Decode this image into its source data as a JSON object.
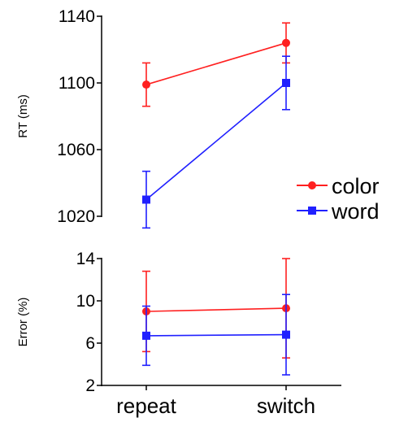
{
  "legend": [
    {
      "name": "color",
      "color": "#ff2020",
      "marker": "circle"
    },
    {
      "name": "word",
      "color": "#2020ff",
      "marker": "square"
    }
  ],
  "chart_data": [
    {
      "type": "line",
      "ylabel": "RT (ms)",
      "categories": [
        "repeat",
        "switch"
      ],
      "ylim": [
        1020,
        1140
      ],
      "yticks": [
        1020,
        1060,
        1100,
        1140
      ],
      "series": [
        {
          "name": "color",
          "color": "#ff2020",
          "marker": "circle",
          "values": [
            1099,
            1124
          ],
          "err": [
            13,
            12
          ]
        },
        {
          "name": "word",
          "color": "#2020ff",
          "marker": "square",
          "values": [
            1030,
            1100
          ],
          "err": [
            17,
            16
          ]
        }
      ],
      "grid": false,
      "legend_position": "bottom-right"
    },
    {
      "type": "line",
      "ylabel": "Error (%)",
      "categories": [
        "repeat",
        "switch"
      ],
      "ylim": [
        2,
        14
      ],
      "yticks": [
        2,
        6,
        10,
        14
      ],
      "series": [
        {
          "name": "color",
          "color": "#ff2020",
          "marker": "circle",
          "values": [
            9.0,
            9.3
          ],
          "err": [
            3.8,
            4.7
          ]
        },
        {
          "name": "word",
          "color": "#2020ff",
          "marker": "square",
          "values": [
            6.7,
            6.8
          ],
          "err": [
            2.8,
            3.8
          ]
        }
      ],
      "grid": false
    }
  ]
}
